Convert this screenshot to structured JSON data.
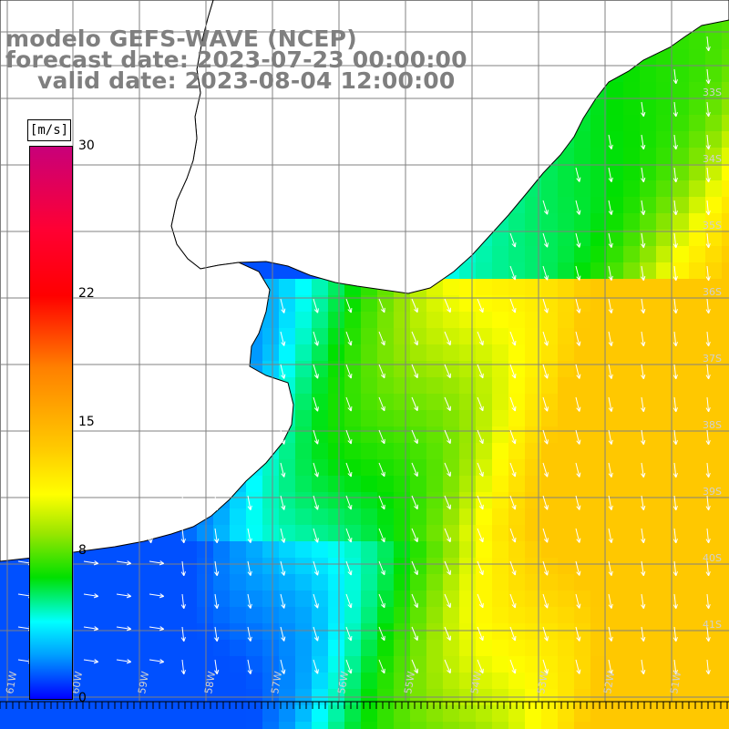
{
  "title": {
    "line1": "modelo GEFS-WAVE (NCEP)",
    "line2": "forecast date: 2023-07-23 00:00:00",
    "line3": "valid date: 2023-08-04 12:00:00"
  },
  "legend": {
    "unit": "[m/s]",
    "ticks": [
      {
        "label": "30",
        "value": 30
      },
      {
        "label": "22",
        "value": 22
      },
      {
        "label": "15",
        "value": 15
      },
      {
        "label": "8",
        "value": 8
      },
      {
        "label": "0",
        "value": 0
      }
    ],
    "colors": [
      "#0000ff",
      "#00a0ff",
      "#00ffff",
      "#00e000",
      "#9ae600",
      "#ffff00",
      "#ffcc00",
      "#ff8000",
      "#ff0000",
      "#c8007a"
    ]
  },
  "map": {
    "lat_labels": [
      "33S",
      "34S",
      "35S",
      "36S",
      "37S",
      "38S",
      "39S",
      "40S",
      "41S"
    ],
    "lon_labels": [
      "61W",
      "60W",
      "59W",
      "58W",
      "57W",
      "56W",
      "55W",
      "54W",
      "53W",
      "52W",
      "51W"
    ],
    "land_color": "#ffffff",
    "arrow_color": "#ffffff",
    "grid_color": "#808080"
  }
}
